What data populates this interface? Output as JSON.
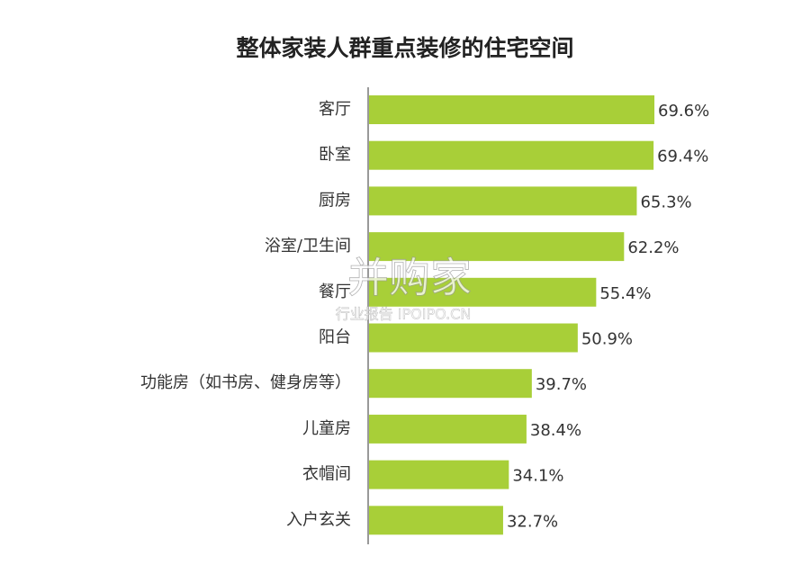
{
  "chart_data": {
    "type": "bar",
    "orientation": "horizontal",
    "title": "整体家装人群重点装修的住宅空间",
    "categories": [
      "客厅",
      "卧室",
      "厨房",
      "浴室/卫生间",
      "餐厅",
      "阳台",
      "功能房（如书房、健身房等）",
      "儿童房",
      "衣帽间",
      "入户玄关"
    ],
    "values": [
      69.6,
      69.4,
      65.3,
      62.2,
      55.4,
      50.9,
      39.7,
      38.4,
      34.1,
      32.7
    ],
    "value_labels": [
      "69.6%",
      "69.4%",
      "65.3%",
      "62.2%",
      "55.4%",
      "50.9%",
      "39.7%",
      "38.4%",
      "34.1%",
      "32.7%"
    ],
    "color": "#a8cf38"
  },
  "watermark": {
    "brand": "并购家",
    "caption": "行业报告 IPOIPO.CN"
  }
}
